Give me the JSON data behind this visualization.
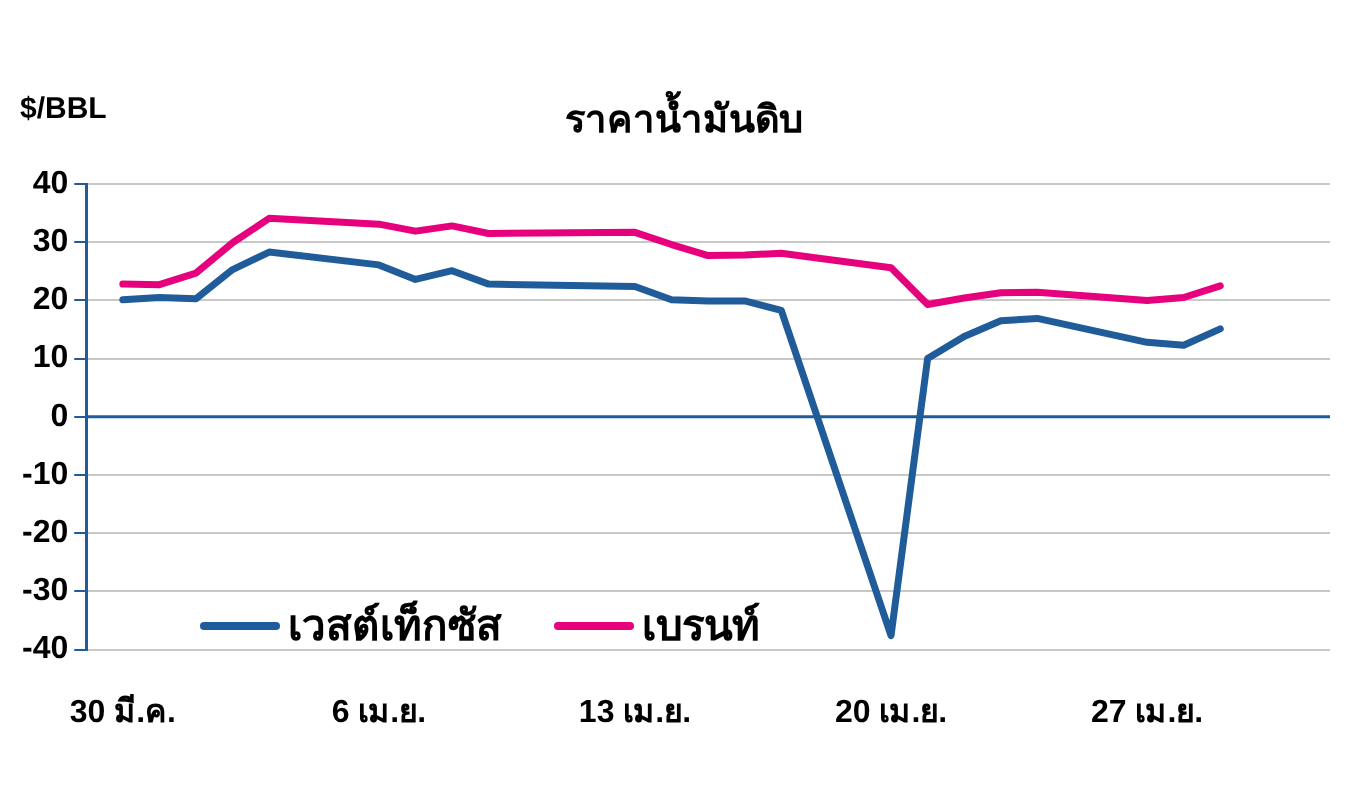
{
  "chart_data": {
    "type": "line",
    "title": "ราคาน้ำมันดิบ",
    "ylabel": "$/BBL",
    "x": [
      "--03-30",
      "--03-31",
      "--04-01",
      "--04-02",
      "--04-03",
      "--04-06",
      "--04-07",
      "--04-08",
      "--04-09",
      "--04-13",
      "--04-14",
      "--04-15",
      "--04-16",
      "--04-17",
      "--04-20",
      "--04-21",
      "--04-22",
      "--04-23",
      "--04-24",
      "--04-27",
      "--04-28",
      "--04-29"
    ],
    "series": [
      {
        "name": "เวสต์เท็กซัส",
        "color": "#1f5c99",
        "values": [
          20.1,
          20.5,
          20.3,
          25.3,
          28.3,
          26.1,
          23.6,
          25.1,
          22.8,
          22.4,
          20.1,
          19.9,
          19.9,
          18.3,
          -37.6,
          10,
          13.8,
          16.5,
          16.9,
          12.8,
          12.3,
          15.1
        ]
      },
      {
        "name": "เบรนท์",
        "color": "#e6007e",
        "values": [
          22.8,
          22.7,
          24.7,
          29.9,
          34.1,
          33.1,
          31.9,
          32.8,
          31.5,
          31.7,
          29.6,
          27.7,
          27.8,
          28.1,
          25.6,
          19.3,
          20.4,
          21.3,
          21.4,
          20,
          20.5,
          22.5
        ]
      }
    ],
    "xlim": [
      "--03-29",
      "--05-02"
    ],
    "xticks": [
      {
        "value": "--03-30",
        "label": "30 มี.ค."
      },
      {
        "value": "--04-06",
        "label": "6 เม.ย."
      },
      {
        "value": "--04-13",
        "label": "13 เม.ย."
      },
      {
        "value": "--04-20",
        "label": "20 เม.ย."
      },
      {
        "value": "--04-27",
        "label": "27 เม.ย."
      }
    ],
    "ylim": [
      -40,
      40
    ],
    "yticks": [
      -40,
      -30,
      -20,
      -10,
      0,
      10,
      20,
      30,
      40
    ],
    "ref_lines": [
      {
        "axis": "y",
        "value": 0,
        "color": "#1f5c99"
      }
    ],
    "grid": "y",
    "legend": "bottom left",
    "marker": "none",
    "line_style": "solid"
  }
}
